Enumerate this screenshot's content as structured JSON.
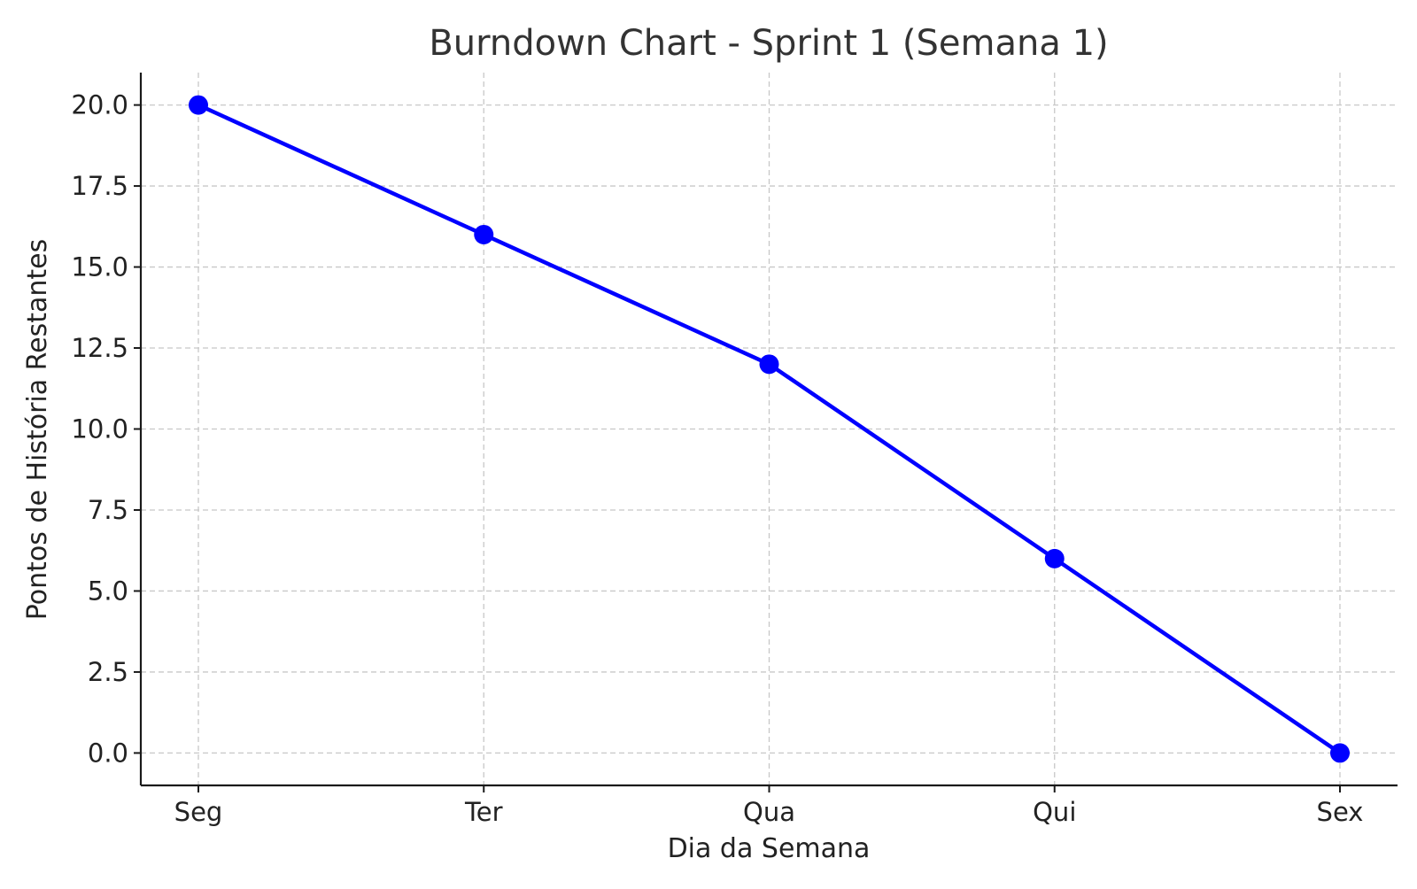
{
  "chart_data": {
    "type": "line",
    "title": "Burndown Chart - Sprint 1 (Semana 1)",
    "xlabel": "Dia da Semana",
    "ylabel": "Pontos de História Restantes",
    "categories": [
      "Seg",
      "Ter",
      "Qua",
      "Qui",
      "Sex"
    ],
    "series": [
      {
        "values": [
          20,
          16,
          12,
          6,
          0
        ],
        "color": "#0000ff",
        "marker": "circle"
      }
    ],
    "ylim": [
      -1,
      21
    ],
    "yticks": [
      0,
      2.5,
      5,
      7.5,
      10,
      12.5,
      15,
      17.5,
      20
    ],
    "ytick_labels": [
      "0.0",
      "2.5",
      "5.0",
      "7.5",
      "10.0",
      "12.5",
      "15.0",
      "17.5",
      "20.0"
    ],
    "grid": true,
    "grid_style": "dashed",
    "legend": false
  }
}
